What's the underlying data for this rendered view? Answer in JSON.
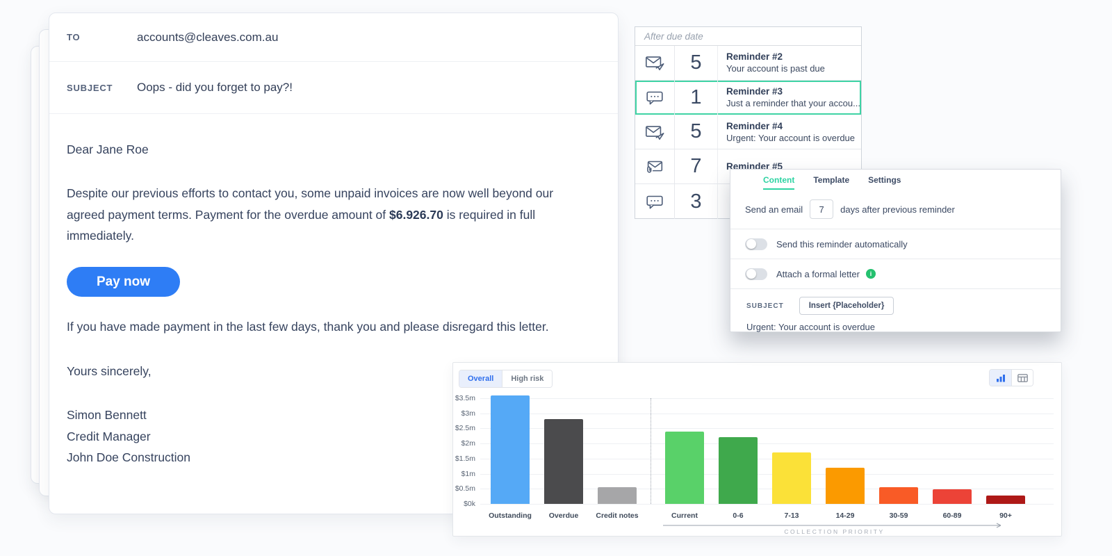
{
  "email": {
    "to_label": "TO",
    "to_value": "accounts@cleaves.com.au",
    "subject_label": "SUBJECT",
    "subject_value": "Oops - did you forget to pay?!",
    "greeting": "Dear Jane Roe",
    "para1_before": "Despite our previous efforts to contact you, some unpaid invoices are now well beyond our agreed payment terms. Payment for the overdue amount of ",
    "para1_amount": "$6.926.70",
    "para1_after": " is required in full immediately.",
    "pay_button": "Pay now",
    "para2": "If you have made payment in the last few days, thank you and please disregard this letter.",
    "closing": "Yours sincerely,",
    "signature_name": "Simon Bennett",
    "signature_title": "Credit Manager",
    "signature_company": "John Doe Construction"
  },
  "reminders": {
    "header": "After due date",
    "items": [
      {
        "icon": "email-send",
        "count": "5",
        "title": "Reminder #2",
        "subtitle": "Your account is past due",
        "selected": false
      },
      {
        "icon": "sms",
        "count": "1",
        "title": "Reminder #3",
        "subtitle": "Just a reminder that your accou...",
        "selected": true
      },
      {
        "icon": "email-send",
        "count": "5",
        "title": "Reminder #4",
        "subtitle": "Urgent: Your account is overdue",
        "selected": false
      },
      {
        "icon": "email-attach",
        "count": "7",
        "title": "Reminder #5",
        "subtitle": "",
        "selected": false
      },
      {
        "icon": "sms",
        "count": "3",
        "title": "",
        "subtitle": "",
        "selected": false
      }
    ]
  },
  "popover": {
    "tabs": [
      "Content",
      "Template",
      "Settings"
    ],
    "active_tab": "Content",
    "send_email_before": "Send an email",
    "days_value": "7",
    "send_email_after": "days after previous reminder",
    "toggle1_label": "Send this reminder automatically",
    "toggle1_state": "off",
    "toggle2_label": "Attach a formal letter",
    "toggle2_state": "off",
    "info_icon_glyph": "i",
    "subject_label": "SUBJECT",
    "insert_placeholder_button": "Insert {Placeholder}",
    "subject_value": "Urgent: Your account is overdue"
  },
  "chart_data": {
    "type": "bar",
    "view_tabs": [
      "Overall",
      "High risk"
    ],
    "active_view_tab": "Overall",
    "categories": [
      "Outstanding",
      "Overdue",
      "Credit notes",
      "Current",
      "0-6",
      "7-13",
      "14-29",
      "30-59",
      "60-89",
      "90+"
    ],
    "values": [
      3.6,
      2.8,
      0.55,
      2.4,
      2.2,
      1.7,
      1.2,
      0.55,
      0.48,
      0.28
    ],
    "unit": "millions of dollars",
    "bar_colors": [
      "#55a9f6",
      "#4b4b4d",
      "#a6a6a8",
      "#59d169",
      "#3fa94c",
      "#fbe138",
      "#fb9a00",
      "#f95b26",
      "#ec4337",
      "#ae1917"
    ],
    "ytick_labels_top_down": [
      "$3.5m",
      "$3m",
      "$2.5m",
      "$2m",
      "$1.5m",
      "$1m",
      "$0.5m",
      "$0k"
    ],
    "ylim": [
      0,
      3.5
    ],
    "grid": true,
    "divider_after_index": 2,
    "group_label": "COLLECTION PRIORITY",
    "xlabel": "",
    "ylabel": "",
    "title": ""
  },
  "colors": {
    "accent_green": "#2dd3a2",
    "selected_row_border": "#3fd3a5",
    "primary_blue": "#2e7df5",
    "chart_tab_blue": "#2f6fed",
    "info_green": "#25c16f"
  }
}
